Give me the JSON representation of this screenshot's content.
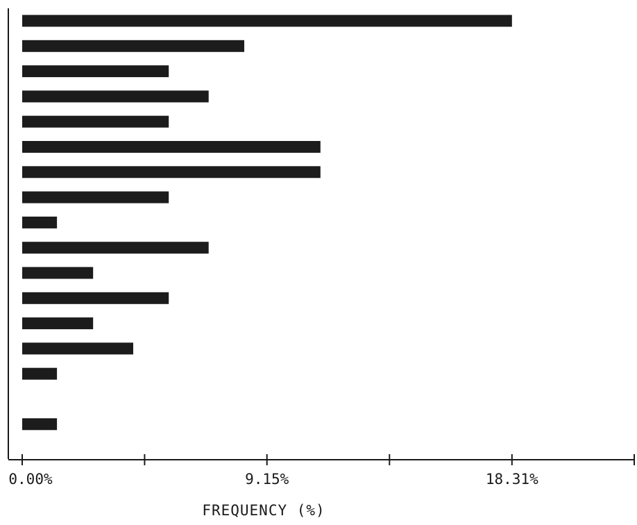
{
  "chart_data": {
    "type": "bar",
    "orientation": "horizontal",
    "title": "",
    "xlabel": "FREQUENCY (%)",
    "ylabel": "",
    "xlim": [
      0,
      22.88
    ],
    "x_ticks": [
      0,
      4.575,
      9.15,
      13.73,
      18.31,
      22.88
    ],
    "x_tick_labels": [
      "0.00%",
      "",
      "9.15%",
      "",
      "18.31%",
      ""
    ],
    "values": [
      18.31,
      8.3,
      5.48,
      6.97,
      5.48,
      11.15,
      11.15,
      5.48,
      1.3,
      6.97,
      2.65,
      5.48,
      2.65,
      4.15,
      1.3,
      0,
      1.3
    ],
    "grid": false,
    "bar_color": "#1c1c1c"
  }
}
